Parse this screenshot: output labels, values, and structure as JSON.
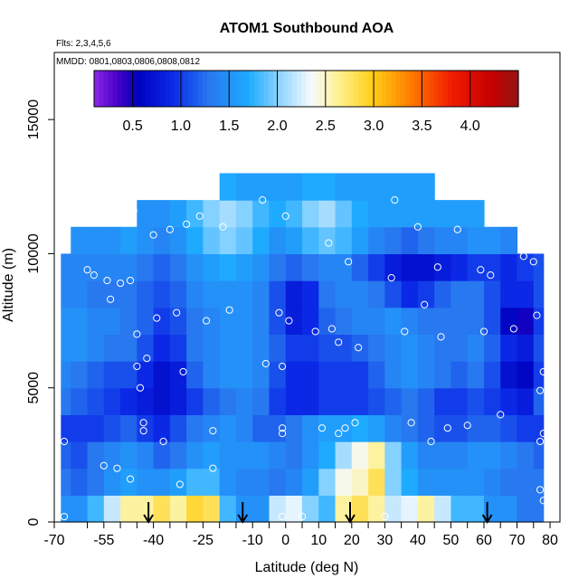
{
  "chart_data": {
    "type": "heatmap",
    "title": "ATOM1 Southbound AOA",
    "annotations": {
      "flights": "Flts: 2,3,4,5,6",
      "dates": "MMDD: 0801,0803,0806,0808,0812"
    },
    "xlabel": "Latitude (deg N)",
    "ylabel": "Altitude (m)",
    "xlim": [
      -70,
      83
    ],
    "ylim": [
      0,
      17500
    ],
    "x_ticks": [
      -70,
      -55,
      -40,
      -25,
      -10,
      0,
      10,
      20,
      30,
      40,
      50,
      60,
      70,
      80
    ],
    "x_tick_labels": [
      "-70",
      "-55",
      "-40",
      "-25",
      "-10",
      "0",
      "10",
      "20",
      "30",
      "40",
      "50",
      "60",
      "70",
      "80"
    ],
    "x_minor_ticks": [
      -60,
      -50,
      -45,
      -35,
      -30,
      -20,
      -15,
      -5,
      5,
      15,
      25,
      35,
      45,
      55,
      65,
      75
    ],
    "y_ticks": [
      0,
      5000,
      10000,
      15000
    ],
    "y_tick_labels": [
      "0",
      "5000",
      "10000",
      "15000"
    ],
    "colorbar": {
      "range": [
        0.1,
        4.5
      ],
      "ticks": [
        0.5,
        1.0,
        1.5,
        2.0,
        2.5,
        3.0,
        3.5,
        4.0
      ],
      "tick_labels": [
        "0.5",
        "1.0",
        "1.5",
        "2.0",
        "2.5",
        "3.0",
        "3.5",
        "4.0"
      ]
    },
    "field": {
      "lat_edges": [
        -68,
        -65,
        -60,
        -55,
        -50,
        -45,
        -40,
        -35,
        -30,
        -25,
        -20,
        -15,
        -10,
        -5,
        0,
        5,
        10,
        15,
        20,
        25,
        30,
        35,
        40,
        45,
        50,
        55,
        60,
        65,
        70,
        75,
        78
      ],
      "alt_edges": [
        0,
        1000,
        2000,
        3000,
        4000,
        5000,
        6000,
        7000,
        8000,
        9000,
        10000,
        11000,
        12000,
        13000
      ],
      "aoa": [
        [
          1.5,
          1.5,
          1.8,
          2.2,
          2.6,
          2.6,
          2.8,
          2.6,
          2.9,
          2.8,
          1.8,
          1.5,
          1.5,
          2.2,
          2.3,
          2.0,
          1.8,
          2.6,
          2.8,
          2.6,
          2.2,
          2.3,
          2.6,
          2.2,
          1.8,
          1.8,
          1.5,
          1.5,
          1.3,
          1.3
        ],
        [
          1.3,
          1.2,
          1.3,
          1.5,
          1.6,
          1.5,
          1.5,
          1.6,
          1.8,
          1.8,
          1.5,
          1.4,
          1.4,
          1.3,
          1.4,
          1.6,
          2.0,
          2.4,
          2.5,
          2.8,
          2.0,
          1.7,
          1.5,
          1.5,
          1.5,
          1.5,
          1.4,
          1.3,
          1.3,
          1.3
        ],
        [
          1.2,
          1.1,
          1.3,
          1.4,
          1.5,
          1.4,
          1.2,
          1.3,
          1.5,
          1.6,
          1.5,
          1.5,
          1.5,
          1.4,
          1.3,
          1.5,
          1.7,
          2.1,
          2.4,
          2.6,
          2.0,
          1.6,
          1.4,
          1.4,
          1.4,
          1.5,
          1.5,
          1.4,
          1.3,
          1.2
        ],
        [
          1.0,
          1.0,
          1.0,
          1.1,
          1.2,
          1.0,
          0.9,
          1.1,
          1.3,
          1.4,
          1.5,
          1.4,
          1.2,
          1.2,
          1.3,
          1.5,
          1.6,
          1.6,
          1.7,
          1.6,
          1.4,
          1.3,
          1.2,
          1.1,
          1.1,
          1.2,
          1.2,
          1.1,
          1.0,
          1.0
        ],
        [
          1.3,
          1.2,
          1.1,
          1.0,
          0.9,
          0.8,
          0.7,
          0.8,
          1.0,
          1.2,
          1.3,
          1.4,
          1.3,
          1.0,
          0.9,
          0.9,
          1.0,
          1.0,
          1.0,
          1.1,
          1.2,
          1.3,
          1.2,
          1.0,
          1.0,
          1.1,
          1.0,
          0.9,
          0.8,
          1.2
        ],
        [
          1.4,
          1.3,
          1.2,
          1.1,
          1.1,
          0.9,
          0.7,
          0.8,
          1.2,
          1.4,
          1.5,
          1.5,
          1.4,
          1.1,
          0.9,
          0.9,
          1.0,
          1.0,
          1.0,
          1.2,
          1.4,
          1.5,
          1.4,
          1.3,
          1.2,
          1.3,
          1.1,
          0.7,
          0.6,
          1.0
        ],
        [
          1.5,
          1.5,
          1.4,
          1.3,
          1.3,
          1.1,
          0.9,
          1.0,
          1.3,
          1.4,
          1.5,
          1.5,
          1.4,
          1.2,
          1.0,
          1.0,
          1.1,
          1.1,
          1.2,
          1.3,
          1.4,
          1.5,
          1.4,
          1.3,
          1.3,
          1.4,
          1.2,
          0.9,
          0.8,
          1.1
        ],
        [
          1.5,
          1.5,
          1.4,
          1.4,
          1.3,
          1.2,
          1.0,
          1.1,
          1.3,
          1.4,
          1.5,
          1.5,
          1.4,
          1.1,
          0.8,
          0.9,
          1.2,
          1.3,
          1.4,
          1.4,
          1.5,
          1.4,
          1.3,
          1.3,
          1.3,
          1.3,
          1.1,
          0.6,
          0.5,
          1.0
        ],
        [
          1.4,
          1.4,
          1.3,
          1.3,
          1.3,
          1.2,
          1.1,
          1.2,
          1.4,
          1.5,
          1.5,
          1.5,
          1.4,
          1.1,
          0.8,
          0.9,
          1.3,
          1.4,
          1.4,
          1.3,
          1.1,
          0.9,
          1.0,
          1.2,
          1.3,
          1.3,
          1.1,
          0.9,
          0.9,
          1.1
        ],
        [
          1.4,
          1.4,
          1.4,
          1.4,
          1.4,
          1.3,
          1.2,
          1.3,
          1.5,
          1.6,
          1.7,
          1.6,
          1.5,
          1.3,
          1.2,
          1.3,
          1.4,
          1.4,
          1.2,
          1.0,
          0.8,
          0.7,
          0.7,
          0.8,
          0.9,
          1.0,
          1.0,
          0.9,
          1.0,
          1.1
        ],
        [
          null,
          1.5,
          1.5,
          1.5,
          1.6,
          1.5,
          1.4,
          1.5,
          1.7,
          1.9,
          2.0,
          1.9,
          1.7,
          1.5,
          1.6,
          1.8,
          1.9,
          1.8,
          1.6,
          1.4,
          1.3,
          1.2,
          1.3,
          1.4,
          1.4,
          1.5,
          1.5,
          1.4,
          null,
          null
        ],
        [
          null,
          null,
          null,
          null,
          null,
          1.5,
          1.5,
          1.6,
          1.8,
          2.0,
          2.1,
          2.0,
          1.8,
          1.7,
          1.8,
          2.0,
          2.1,
          1.9,
          1.7,
          1.6,
          1.6,
          1.6,
          1.6,
          1.6,
          1.6,
          1.6,
          null,
          null,
          null,
          null
        ],
        [
          null,
          null,
          null,
          null,
          null,
          null,
          null,
          null,
          null,
          null,
          1.7,
          1.6,
          1.6,
          1.6,
          1.6,
          1.7,
          1.7,
          1.6,
          1.6,
          1.6,
          1.6,
          1.6,
          1.6,
          null,
          null,
          null,
          null,
          null,
          null,
          null
        ]
      ]
    },
    "samples": [
      {
        "lat": -68,
        "alt": 10200
      },
      {
        "lat": -67,
        "alt": 3000
      },
      {
        "lat": -67,
        "alt": 200
      },
      {
        "lat": -60,
        "alt": 9400
      },
      {
        "lat": -58,
        "alt": 9200
      },
      {
        "lat": -55,
        "alt": 2100
      },
      {
        "lat": -54,
        "alt": 9000
      },
      {
        "lat": -53,
        "alt": 8300
      },
      {
        "lat": -51,
        "alt": 2000
      },
      {
        "lat": -50,
        "alt": 8900
      },
      {
        "lat": -47,
        "alt": 9000
      },
      {
        "lat": -47,
        "alt": 1600
      },
      {
        "lat": -46,
        "alt": 11600
      },
      {
        "lat": -45,
        "alt": 7000
      },
      {
        "lat": -45,
        "alt": 5800
      },
      {
        "lat": -44,
        "alt": 5000
      },
      {
        "lat": -43,
        "alt": 3700
      },
      {
        "lat": -43,
        "alt": 3400
      },
      {
        "lat": -42,
        "alt": 6100
      },
      {
        "lat": -40,
        "alt": 10700
      },
      {
        "lat": -39,
        "alt": 7600
      },
      {
        "lat": -37,
        "alt": 3000
      },
      {
        "lat": -35,
        "alt": 10900
      },
      {
        "lat": -33,
        "alt": 7800
      },
      {
        "lat": -32,
        "alt": 1400
      },
      {
        "lat": -31,
        "alt": 5600
      },
      {
        "lat": -30,
        "alt": 11100
      },
      {
        "lat": -26,
        "alt": 11400
      },
      {
        "lat": -24,
        "alt": 7500
      },
      {
        "lat": -22,
        "alt": 3400
      },
      {
        "lat": -22,
        "alt": 2000
      },
      {
        "lat": -19,
        "alt": 11000
      },
      {
        "lat": -17,
        "alt": 7900
      },
      {
        "lat": -7,
        "alt": 12000
      },
      {
        "lat": -6,
        "alt": 5900
      },
      {
        "lat": -2,
        "alt": 7800
      },
      {
        "lat": -1,
        "alt": 5800
      },
      {
        "lat": 0,
        "alt": 11400
      },
      {
        "lat": 1,
        "alt": 7500
      },
      {
        "lat": -1,
        "alt": 3500
      },
      {
        "lat": -1,
        "alt": 3300
      },
      {
        "lat": -1,
        "alt": 200
      },
      {
        "lat": 5,
        "alt": 200
      },
      {
        "lat": 9,
        "alt": 7100
      },
      {
        "lat": 11,
        "alt": 3500
      },
      {
        "lat": 13,
        "alt": 10400
      },
      {
        "lat": 14,
        "alt": 7200
      },
      {
        "lat": 16,
        "alt": 3300
      },
      {
        "lat": 16,
        "alt": 6700
      },
      {
        "lat": 18,
        "alt": 3500
      },
      {
        "lat": 19,
        "alt": 9700
      },
      {
        "lat": 21,
        "alt": 3700
      },
      {
        "lat": 22,
        "alt": 6500
      },
      {
        "lat": 30,
        "alt": 200
      },
      {
        "lat": 32,
        "alt": 9100
      },
      {
        "lat": 33,
        "alt": 12000
      },
      {
        "lat": 36,
        "alt": 7100
      },
      {
        "lat": 38,
        "alt": 3700
      },
      {
        "lat": 40,
        "alt": 11000
      },
      {
        "lat": 42,
        "alt": 8100
      },
      {
        "lat": 44,
        "alt": 3000
      },
      {
        "lat": 46,
        "alt": 9500
      },
      {
        "lat": 47,
        "alt": 6900
      },
      {
        "lat": 49,
        "alt": 3500
      },
      {
        "lat": 52,
        "alt": 10900
      },
      {
        "lat": 55,
        "alt": 3600
      },
      {
        "lat": 59,
        "alt": 9400
      },
      {
        "lat": 60,
        "alt": 7100
      },
      {
        "lat": 62,
        "alt": 9200
      },
      {
        "lat": 65,
        "alt": 4000
      },
      {
        "lat": 67,
        "alt": 11300
      },
      {
        "lat": 69,
        "alt": 7200
      },
      {
        "lat": 72,
        "alt": 9900
      },
      {
        "lat": 75,
        "alt": 9700
      },
      {
        "lat": 76,
        "alt": 7700
      },
      {
        "lat": 77,
        "alt": 4900
      },
      {
        "lat": 77,
        "alt": 3000
      },
      {
        "lat": 77,
        "alt": 1200
      },
      {
        "lat": 78,
        "alt": 5600
      },
      {
        "lat": 78,
        "alt": 3300
      },
      {
        "lat": 78,
        "alt": 800
      }
    ],
    "arrows_lat": [
      -41.5,
      -13,
      19.5,
      61
    ]
  }
}
